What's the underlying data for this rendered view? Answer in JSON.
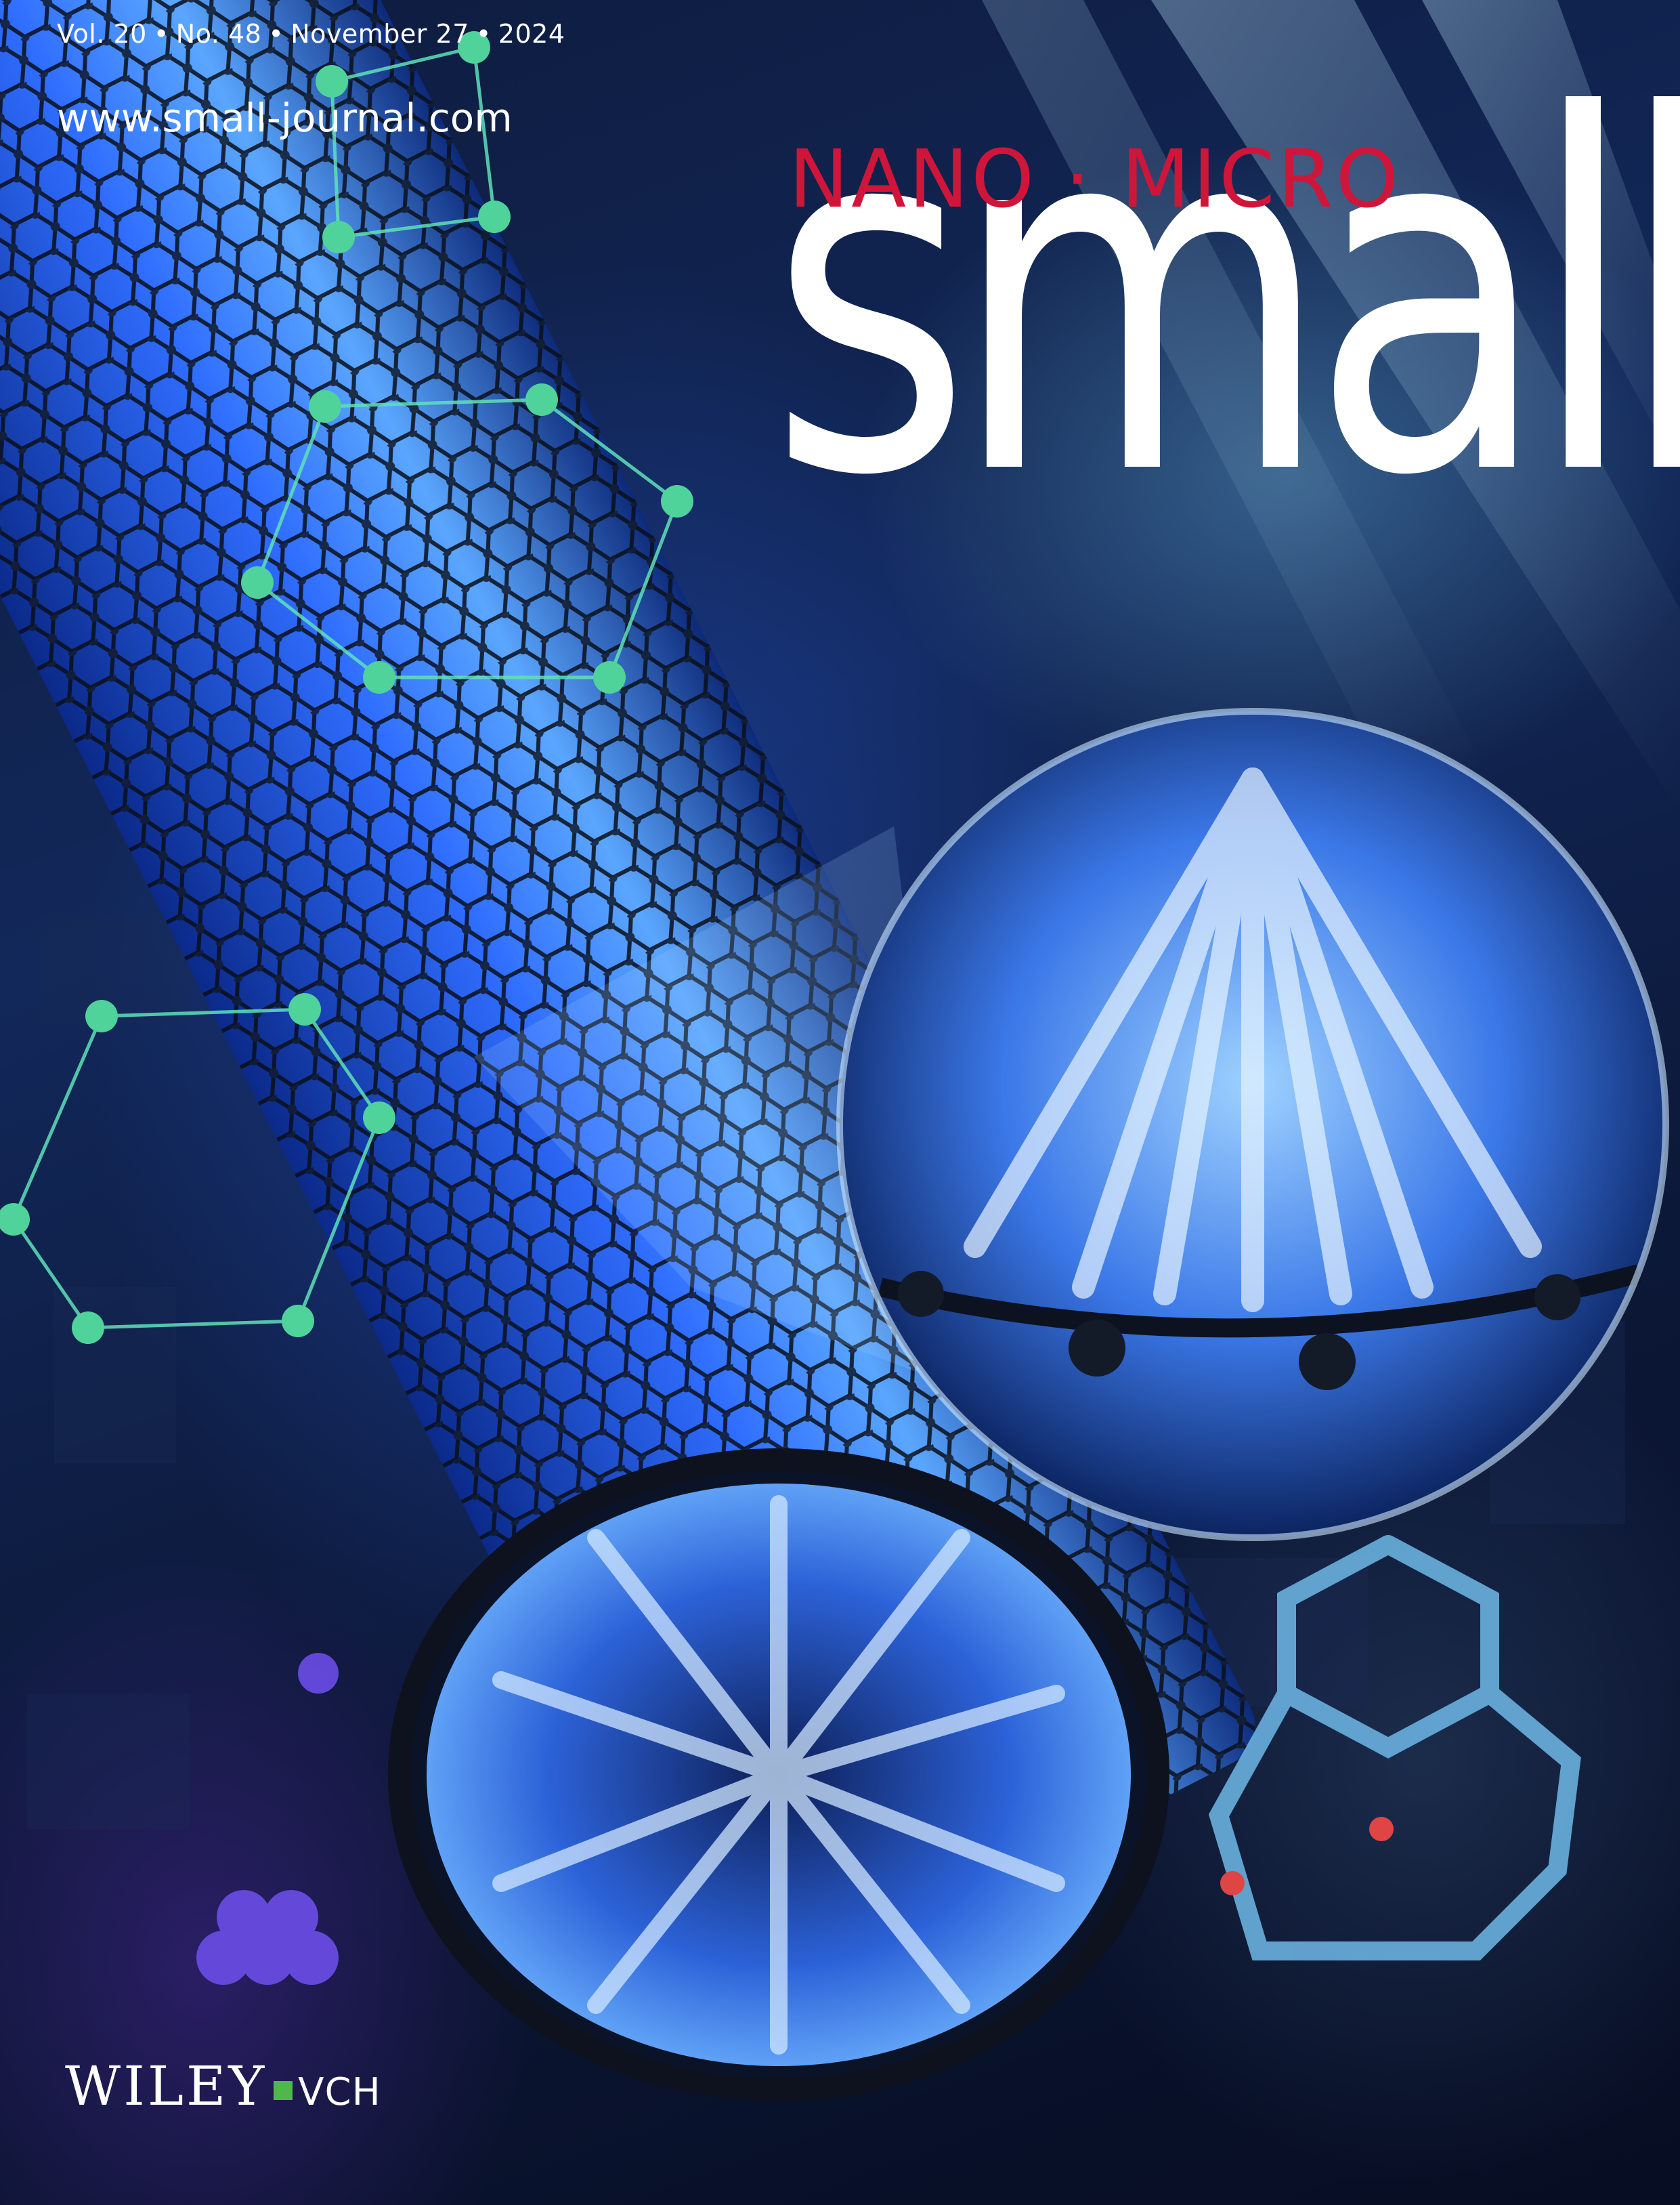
{
  "header": {
    "volume": "Vol. 20",
    "issue": "No. 48",
    "date": "November 27",
    "year": "2024",
    "separator": "•",
    "url": "www.small-journal.com"
  },
  "brand": {
    "subtitle": "NANO · MICRO",
    "title": "small",
    "title_color": "#ffffff",
    "subtitle_color": "#d0153a"
  },
  "publisher": {
    "name": "WILEY",
    "suffix": "VCH",
    "mark_color": "#4fb848"
  }
}
